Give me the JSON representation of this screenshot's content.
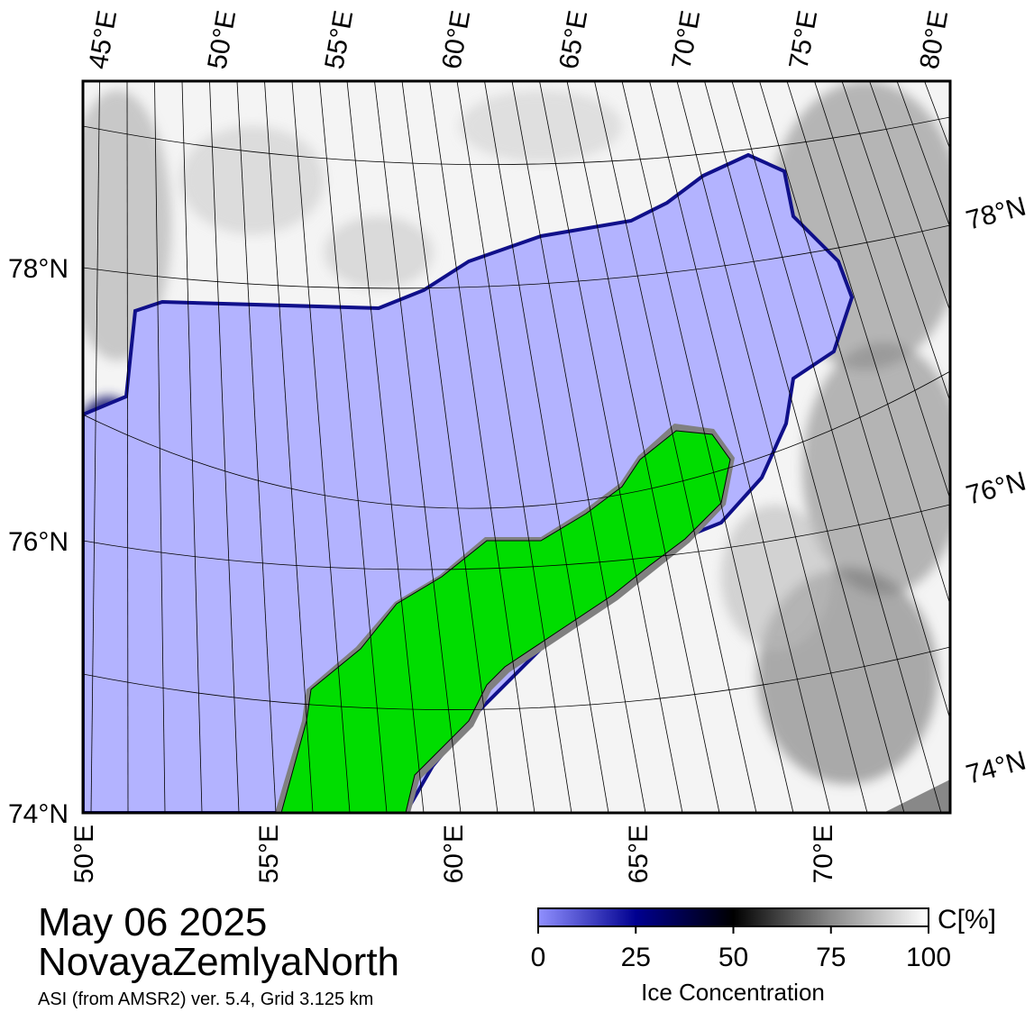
{
  "map": {
    "top_labels": [
      "45°E",
      "50°E",
      "55°E",
      "60°E",
      "65°E",
      "70°E",
      "75°E",
      "80°E"
    ],
    "bottom_labels": [
      "50°E",
      "55°E",
      "60°E",
      "65°E",
      "70°E"
    ],
    "left_labels": [
      "78°N",
      "76°N",
      "74°N"
    ],
    "right_labels": [
      "78°N",
      "76°N",
      "74°N"
    ]
  },
  "title": {
    "date": "May 06 2025",
    "region": "NovayaZemlyaNorth",
    "source": "ASI (from AMSR2) ver. 5.4,  Grid 3.125 km"
  },
  "colorbar": {
    "unit": "C[%]",
    "label": "Ice Concentration",
    "range": [
      0,
      100
    ],
    "ticks": [
      0,
      25,
      50,
      75,
      100
    ]
  }
}
